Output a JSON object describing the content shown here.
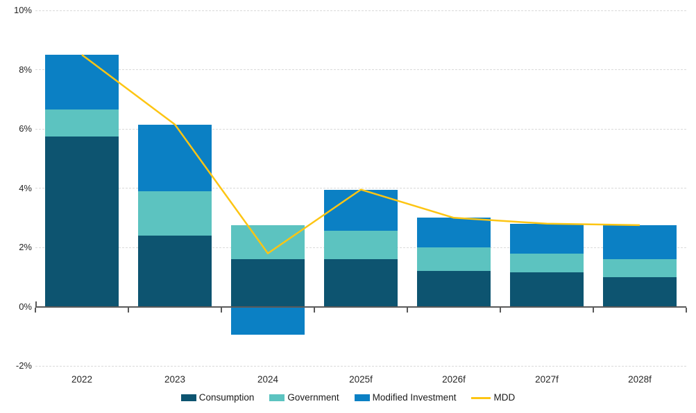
{
  "chart_data": {
    "type": "bar",
    "subtype": "stacked-bars-with-line-overlay",
    "categories": [
      "2022",
      "2023",
      "2024",
      "2025f",
      "2026f",
      "2027f",
      "2028f"
    ],
    "series": [
      {
        "name": "Consumption",
        "type": "bar",
        "color": "#0d5470",
        "values": [
          5.75,
          2.4,
          1.6,
          1.6,
          1.2,
          1.15,
          1.0
        ]
      },
      {
        "name": "Government",
        "type": "bar",
        "color": "#5cc3c0",
        "values": [
          0.9,
          1.5,
          1.15,
          0.95,
          0.8,
          0.65,
          0.6
        ]
      },
      {
        "name": "Modified Investment",
        "type": "bar",
        "color": "#0b80c4",
        "values": [
          1.85,
          2.25,
          -0.95,
          1.4,
          1.0,
          1.0,
          1.15
        ]
      },
      {
        "name": "MDD",
        "type": "line",
        "color": "#fdc513",
        "values": [
          8.5,
          6.15,
          1.8,
          3.95,
          3.0,
          2.8,
          2.75
        ]
      }
    ],
    "y_axis": {
      "min": -2,
      "max": 10,
      "step": 2,
      "unit": "%",
      "tick_values": [
        10,
        8,
        6,
        4,
        2,
        0,
        -2
      ],
      "tick_labels": [
        "10%",
        "8%",
        "6%",
        "4%",
        "2%",
        "0%",
        "-2%"
      ]
    },
    "x_axis": {
      "tick_labels": [
        "2022",
        "2023",
        "2024",
        "2025f",
        "2026f",
        "2027f",
        "2028f"
      ]
    },
    "grid": {
      "horizontal": "dashed",
      "color": "#d9d9d9"
    },
    "axis_color": "#595959",
    "text_color": "#262626",
    "legend_position": "bottom",
    "legend": [
      "Consumption",
      "Government",
      "Modified Investment",
      "MDD"
    ]
  }
}
